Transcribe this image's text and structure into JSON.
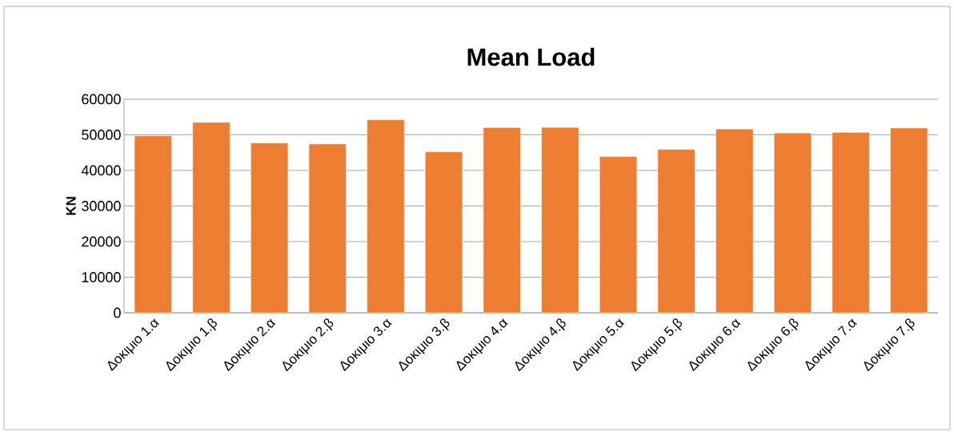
{
  "chart_data": {
    "type": "bar",
    "title": "Mean Load",
    "ylabel": "KN",
    "categories": [
      "Δοκιμιο 1.α",
      "Δοκιμιο 1.β",
      "Δοκιμιο 2.α",
      "Δοκιμιο 2.β",
      "Δοκιμιο 3.α",
      "Δοκιμιο 3.β",
      "Δοκιμιο 4.α",
      "Δοκιμιο 4.β",
      "Δοκιμιο 5.α",
      "Δοκιμιο 5.β",
      "Δοκιμιο 6.α",
      "Δοκιμιο 6.β",
      "Δοκιμιο 7.α",
      "Δοκιμιο 7.β"
    ],
    "values": [
      49700,
      53500,
      47700,
      47400,
      54200,
      45200,
      52000,
      52100,
      43900,
      45900,
      51600,
      50500,
      50700,
      51900
    ],
    "color": "#ed7d31",
    "ylim": [
      0,
      60000
    ],
    "yticks": [
      0,
      10000,
      20000,
      30000,
      40000,
      50000,
      60000
    ],
    "grid": "y"
  }
}
